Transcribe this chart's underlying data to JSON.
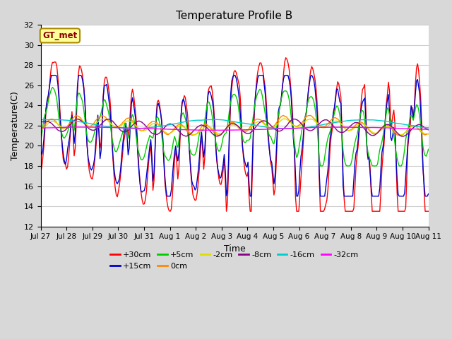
{
  "title": "Temperature Profile B",
  "xlabel": "Time",
  "ylabel": "Temperature(C)",
  "ylim": [
    12,
    32
  ],
  "yticks": [
    12,
    14,
    16,
    18,
    20,
    22,
    24,
    26,
    28,
    30,
    32
  ],
  "xtick_labels": [
    "Jul 27",
    "Jul 28",
    "Jul 29",
    "Jul 30",
    "Jul 31",
    "Aug 1",
    "Aug 2",
    "Aug 3",
    "Aug 4",
    "Aug 5",
    "Aug 6",
    "Aug 7",
    "Aug 8",
    "Aug 9",
    "Aug 10",
    "Aug 11"
  ],
  "legend_label": "GT_met",
  "legend_box_color": "#ffff99",
  "legend_box_edge": "#aa8800",
  "series_colors": {
    "+30cm": "#ff0000",
    "+15cm": "#0000cc",
    "+5cm": "#00cc00",
    "0cm": "#ff8800",
    "-2cm": "#dddd00",
    "-8cm": "#880088",
    "-16cm": "#00cccc",
    "-32cm": "#ff00ff"
  },
  "series_linewidth": 1.0,
  "fig_background": "#d8d8d8",
  "plot_background": "#ffffff",
  "grid_color": "#cccccc",
  "days": 15,
  "base_temp": 22.0,
  "seed": 12345
}
